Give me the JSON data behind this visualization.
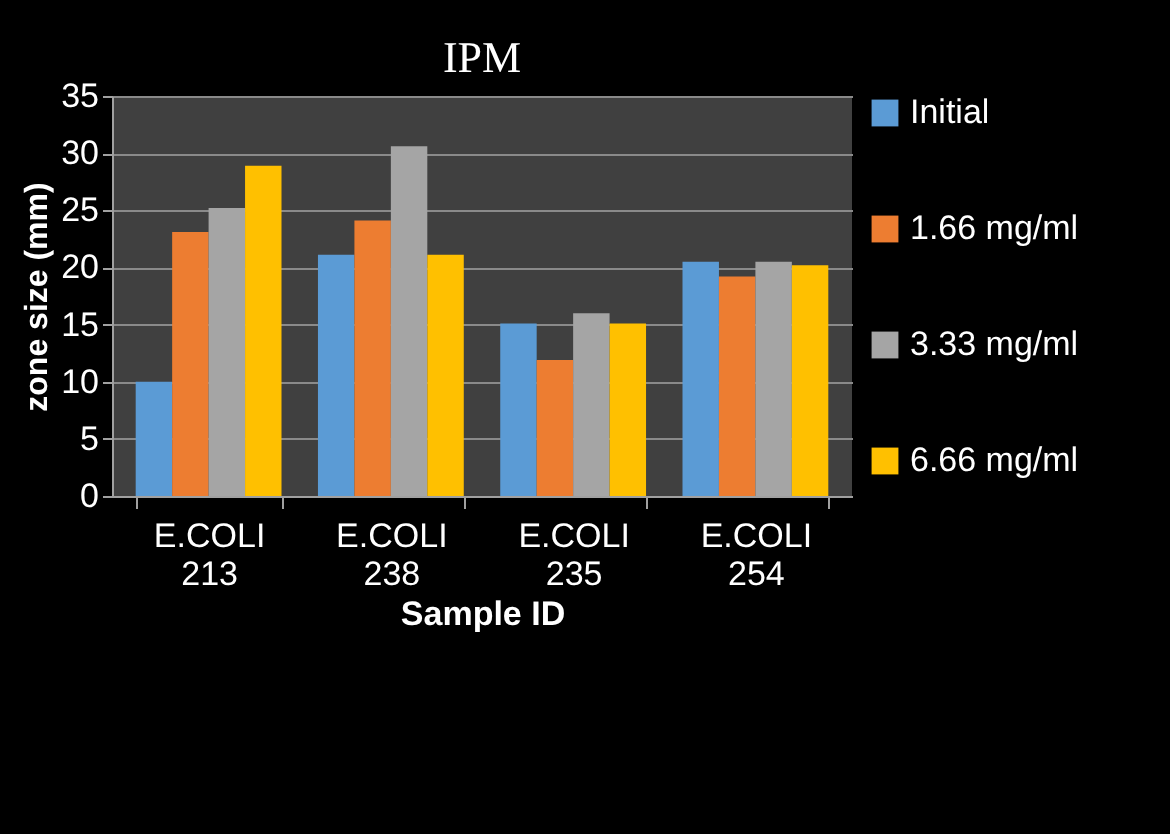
{
  "chart_data": {
    "type": "bar",
    "title": "IPM",
    "xlabel": "Sample ID",
    "ylabel": "zone size (mm)",
    "categories": [
      "E.COLI 213",
      "E.COLI 238",
      "E.COLI 235",
      "E.COLI 254"
    ],
    "series": [
      {
        "name": "Initial",
        "color": "#5b9bd5",
        "values": [
          10,
          21.1,
          15.1,
          20.5
        ]
      },
      {
        "name": "1.66 mg/ml",
        "color": "#ed7d31",
        "values": [
          23.1,
          24.1,
          11.9,
          19.2
        ]
      },
      {
        "name": "3.33 mg/ml",
        "color": "#a5a5a5",
        "values": [
          25.2,
          30.6,
          16,
          20.5
        ]
      },
      {
        "name": "6.66 mg/ml",
        "color": "#ffc000",
        "values": [
          28.9,
          21.1,
          15.1,
          20.2
        ]
      }
    ],
    "ylim": [
      0,
      35
    ],
    "yticks": [
      0,
      5,
      10,
      15,
      20,
      25,
      30,
      35
    ],
    "grid": "y",
    "legend": "right"
  }
}
